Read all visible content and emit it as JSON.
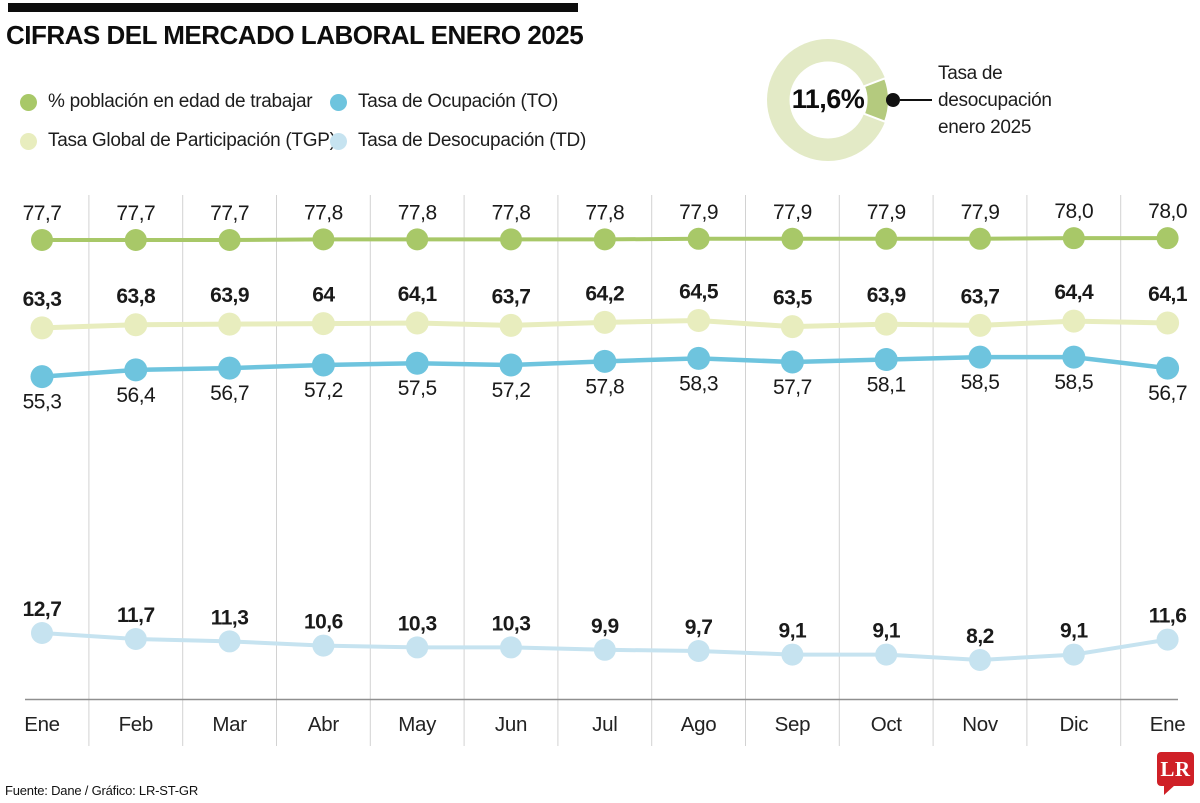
{
  "header": {
    "title": "CIFRAS DEL MERCADO LABORAL ENERO 2025"
  },
  "legend": {
    "items": [
      {
        "label": "% población en edad de trabajar",
        "color": "#a8c868"
      },
      {
        "label": "Tasa Global de Participación (TGP)",
        "color": "#e8edbe"
      },
      {
        "label": "Tasa de Ocupación (TO)",
        "color": "#6ec4de"
      },
      {
        "label": "Tasa de Desocupación (TD)",
        "color": "#c6e3f0"
      }
    ]
  },
  "donut": {
    "center_label": "11,6%",
    "percent": 11.6,
    "ring_color": "#e3eac6",
    "slice_color": "#b4ca7e",
    "annotation_lines": [
      "Tasa de",
      "desocupación",
      "enero 2025"
    ]
  },
  "chart_data": {
    "type": "line",
    "categories": [
      "Ene",
      "Feb",
      "Mar",
      "Abr",
      "May",
      "Jun",
      "Jul",
      "Ago",
      "Sep",
      "Oct",
      "Nov",
      "Dic",
      "Ene"
    ],
    "grid": "vertical",
    "legend_position": "top",
    "series": [
      {
        "name": "% población en edad de trabajar",
        "color": "#a8c868",
        "values": [
          77.7,
          77.7,
          77.7,
          77.8,
          77.8,
          77.8,
          77.8,
          77.9,
          77.9,
          77.9,
          77.9,
          78.0,
          78.0
        ],
        "labels": [
          "77,7",
          "77,7",
          "77,7",
          "77,8",
          "77,8",
          "77,8",
          "77,8",
          "77,9",
          "77,9",
          "77,9",
          "77,9",
          "78,0",
          "78,0"
        ]
      },
      {
        "name": "Tasa Global de Participación (TGP)",
        "color": "#e8edbe",
        "values": [
          63.3,
          63.8,
          63.9,
          64.0,
          64.1,
          63.7,
          64.2,
          64.5,
          63.5,
          63.9,
          63.7,
          64.4,
          64.1
        ],
        "labels": [
          "63,3",
          "63,8",
          "63,9",
          "64",
          "64,1",
          "63,7",
          "64,2",
          "64,5",
          "63,5",
          "63,9",
          "63,7",
          "64,4",
          "64,1"
        ]
      },
      {
        "name": "Tasa de Ocupación (TO)",
        "color": "#6ec4de",
        "values": [
          55.3,
          56.4,
          56.7,
          57.2,
          57.5,
          57.2,
          57.8,
          58.3,
          57.7,
          58.1,
          58.5,
          58.5,
          56.7
        ],
        "labels": [
          "55,3",
          "56,4",
          "56,7",
          "57,2",
          "57,5",
          "57,2",
          "57,8",
          "58,3",
          "57,7",
          "58,1",
          "58,5",
          "58,5",
          "56,7"
        ]
      },
      {
        "name": "Tasa de Desocupación (TD)",
        "color": "#c6e3f0",
        "values": [
          12.7,
          11.7,
          11.3,
          10.6,
          10.3,
          10.3,
          9.9,
          9.7,
          9.1,
          9.1,
          8.2,
          9.1,
          11.6
        ],
        "labels": [
          "12,7",
          "11,7",
          "11,3",
          "10,6",
          "10,3",
          "10,3",
          "9,9",
          "9,7",
          "9,1",
          "9,1",
          "8,2",
          "9,1",
          "11,6"
        ]
      }
    ]
  },
  "footer": {
    "source": "Fuente: Dane / Gráfico: LR-ST-GR",
    "logo": "LR"
  }
}
